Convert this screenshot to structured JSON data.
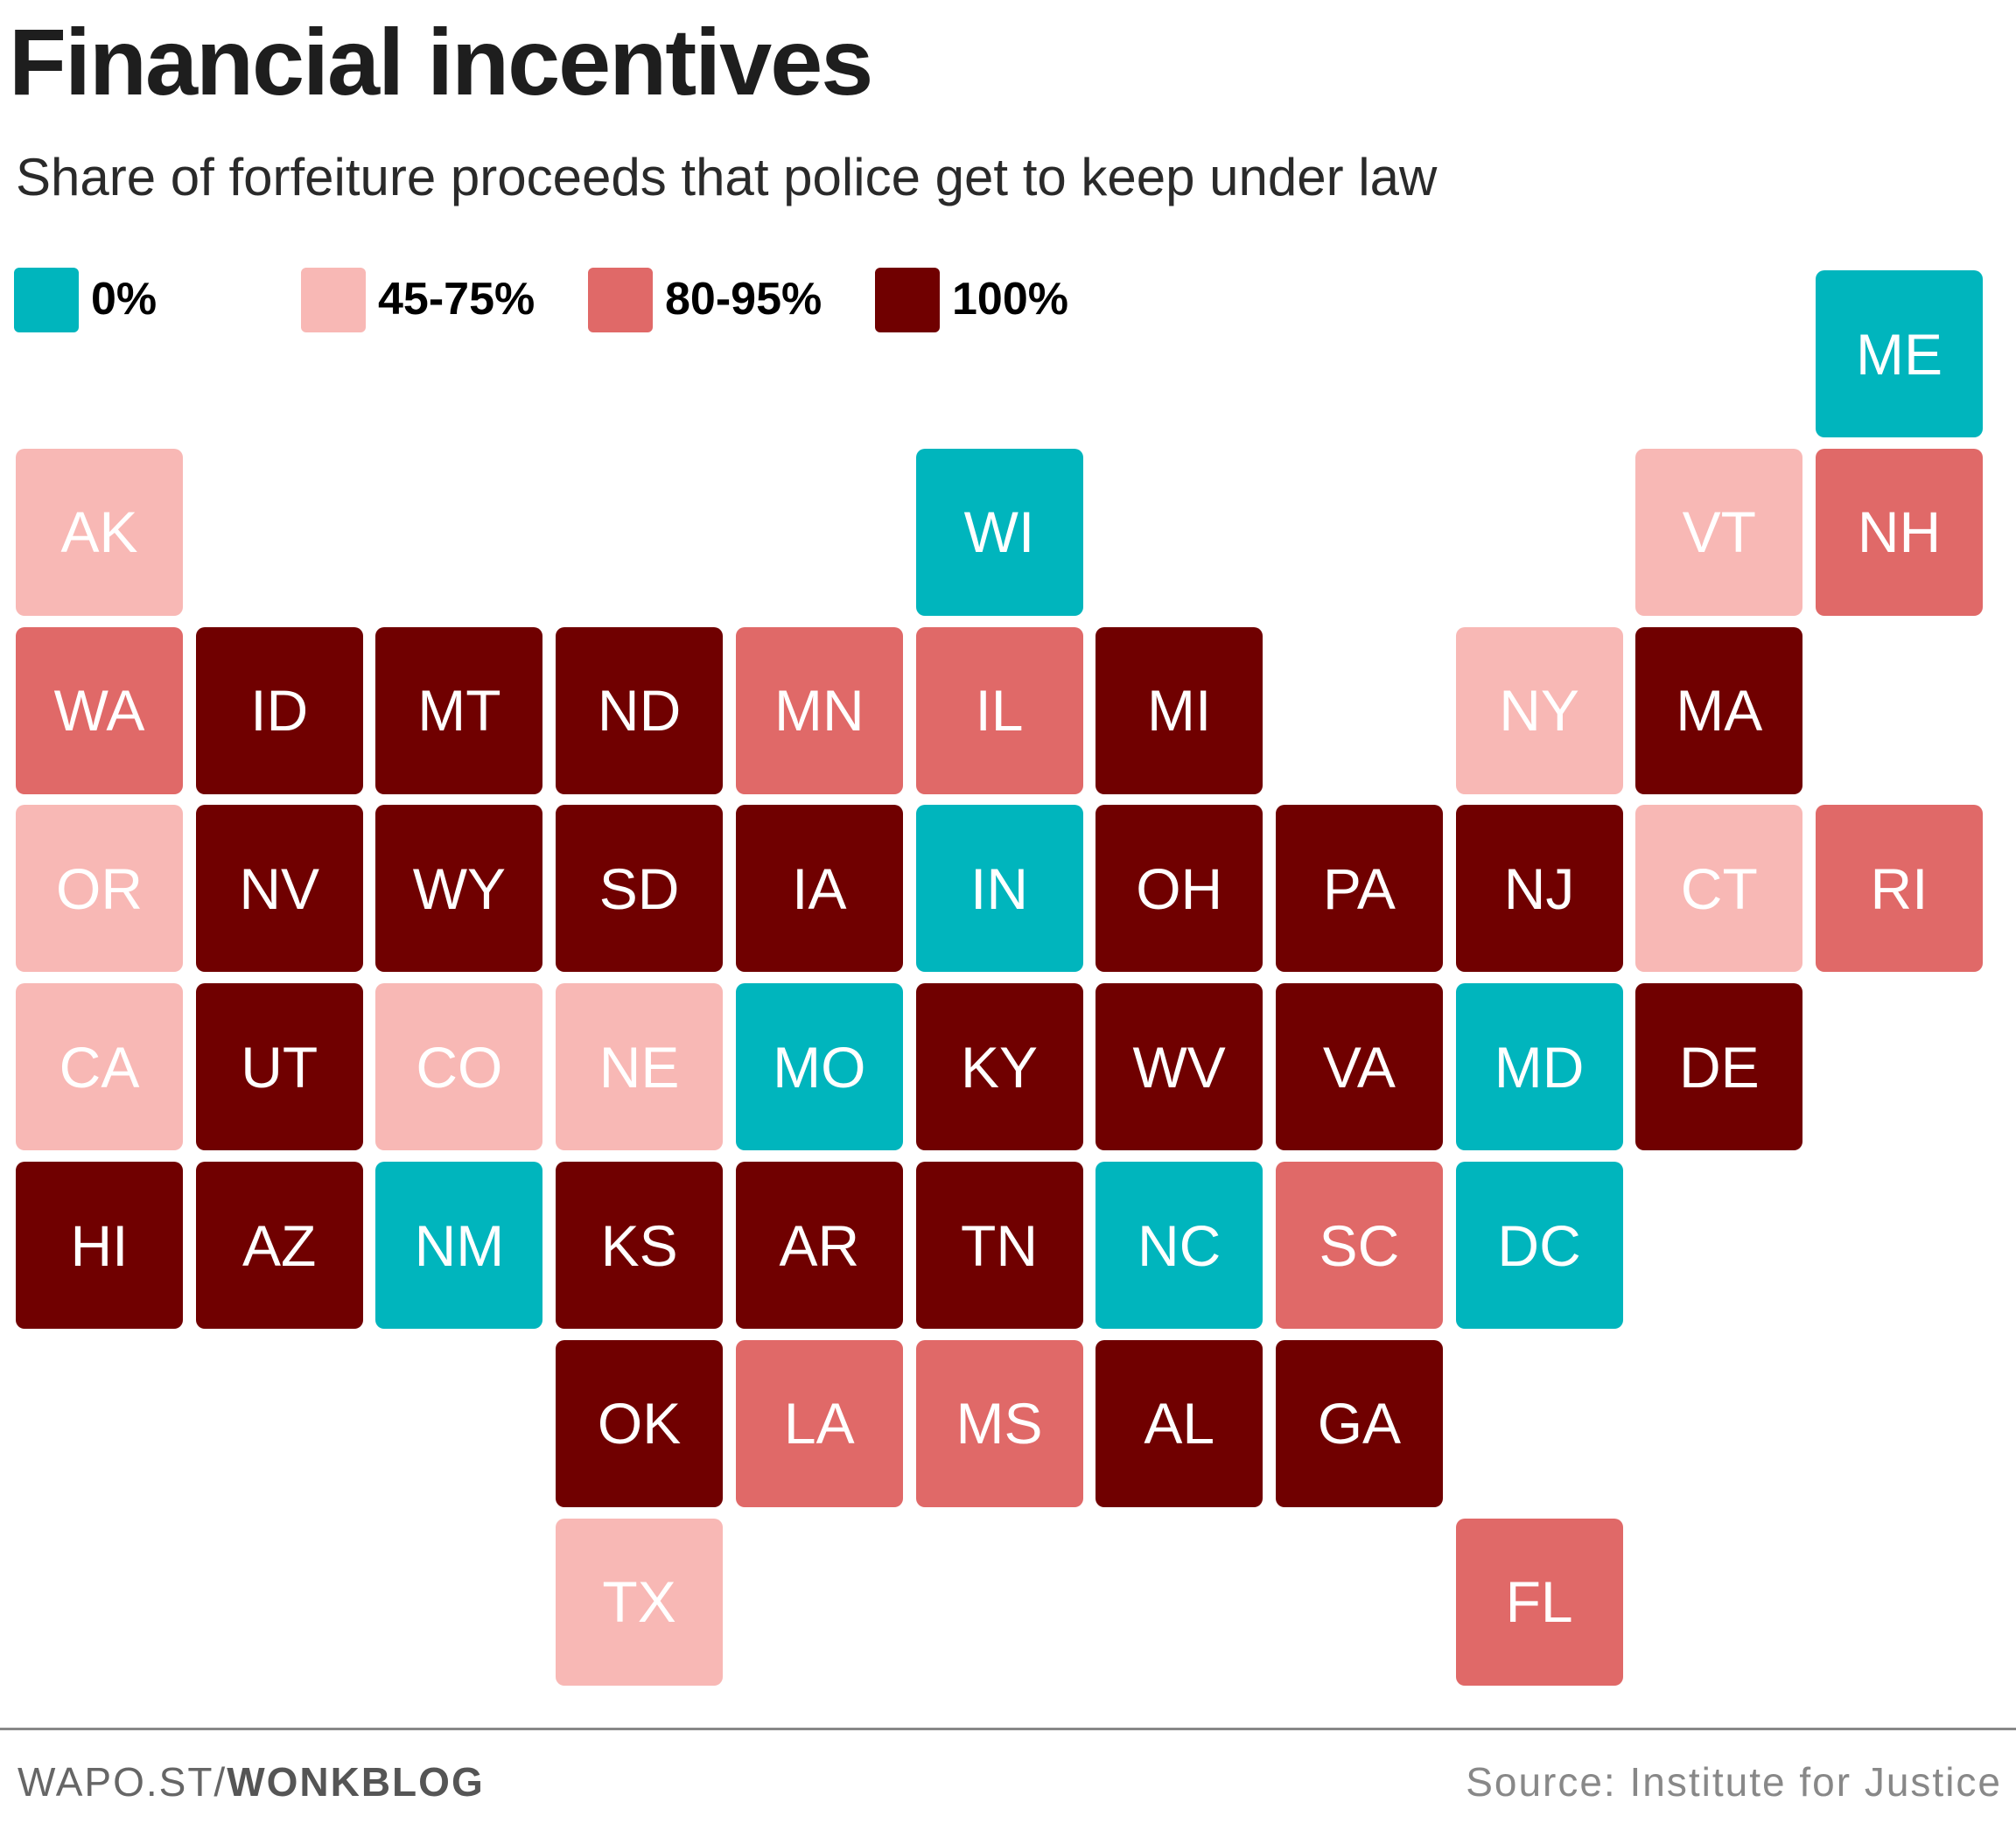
{
  "title": "Financial incentives",
  "subtitle": "Share of forfeiture proceeds that police get to keep under law",
  "footer": {
    "left_prefix": "WAPO.ST/",
    "left_bold": "WONKBLOG",
    "source": "Source: Institute for Justice"
  },
  "chart_data": {
    "type": "heatmap",
    "title": "Financial incentives",
    "subtitle": "Share of forfeiture proceeds that police get to keep under law",
    "legend": [
      {
        "key": "0",
        "label": "0%",
        "color": "#00B5BD"
      },
      {
        "key": "45-75",
        "label": "45-75%",
        "color": "#F8B8B5"
      },
      {
        "key": "80-95",
        "label": "80-95%",
        "color": "#E06968"
      },
      {
        "key": "100",
        "label": "100%",
        "color": "#700000"
      }
    ],
    "states": [
      {
        "state": "ME",
        "category": "0"
      },
      {
        "state": "AK",
        "category": "45-75"
      },
      {
        "state": "WI",
        "category": "0"
      },
      {
        "state": "VT",
        "category": "45-75"
      },
      {
        "state": "NH",
        "category": "80-95"
      },
      {
        "state": "WA",
        "category": "80-95"
      },
      {
        "state": "ID",
        "category": "100"
      },
      {
        "state": "MT",
        "category": "100"
      },
      {
        "state": "ND",
        "category": "100"
      },
      {
        "state": "MN",
        "category": "80-95"
      },
      {
        "state": "IL",
        "category": "80-95"
      },
      {
        "state": "MI",
        "category": "100"
      },
      {
        "state": "NY",
        "category": "45-75"
      },
      {
        "state": "MA",
        "category": "100"
      },
      {
        "state": "OR",
        "category": "45-75"
      },
      {
        "state": "NV",
        "category": "100"
      },
      {
        "state": "WY",
        "category": "100"
      },
      {
        "state": "SD",
        "category": "100"
      },
      {
        "state": "IA",
        "category": "100"
      },
      {
        "state": "IN",
        "category": "0"
      },
      {
        "state": "OH",
        "category": "100"
      },
      {
        "state": "PA",
        "category": "100"
      },
      {
        "state": "NJ",
        "category": "100"
      },
      {
        "state": "CT",
        "category": "45-75"
      },
      {
        "state": "RI",
        "category": "80-95"
      },
      {
        "state": "CA",
        "category": "45-75"
      },
      {
        "state": "UT",
        "category": "100"
      },
      {
        "state": "CO",
        "category": "45-75"
      },
      {
        "state": "NE",
        "category": "45-75"
      },
      {
        "state": "MO",
        "category": "0"
      },
      {
        "state": "KY",
        "category": "100"
      },
      {
        "state": "WV",
        "category": "100"
      },
      {
        "state": "VA",
        "category": "100"
      },
      {
        "state": "MD",
        "category": "0"
      },
      {
        "state": "DE",
        "category": "100"
      },
      {
        "state": "HI",
        "category": "100"
      },
      {
        "state": "AZ",
        "category": "100"
      },
      {
        "state": "NM",
        "category": "0"
      },
      {
        "state": "KS",
        "category": "100"
      },
      {
        "state": "AR",
        "category": "100"
      },
      {
        "state": "TN",
        "category": "100"
      },
      {
        "state": "NC",
        "category": "0"
      },
      {
        "state": "SC",
        "category": "80-95"
      },
      {
        "state": "DC",
        "category": "0"
      },
      {
        "state": "OK",
        "category": "100"
      },
      {
        "state": "LA",
        "category": "80-95"
      },
      {
        "state": "MS",
        "category": "80-95"
      },
      {
        "state": "AL",
        "category": "100"
      },
      {
        "state": "GA",
        "category": "100"
      },
      {
        "state": "TX",
        "category": "45-75"
      },
      {
        "state": "FL",
        "category": "80-95"
      }
    ]
  }
}
